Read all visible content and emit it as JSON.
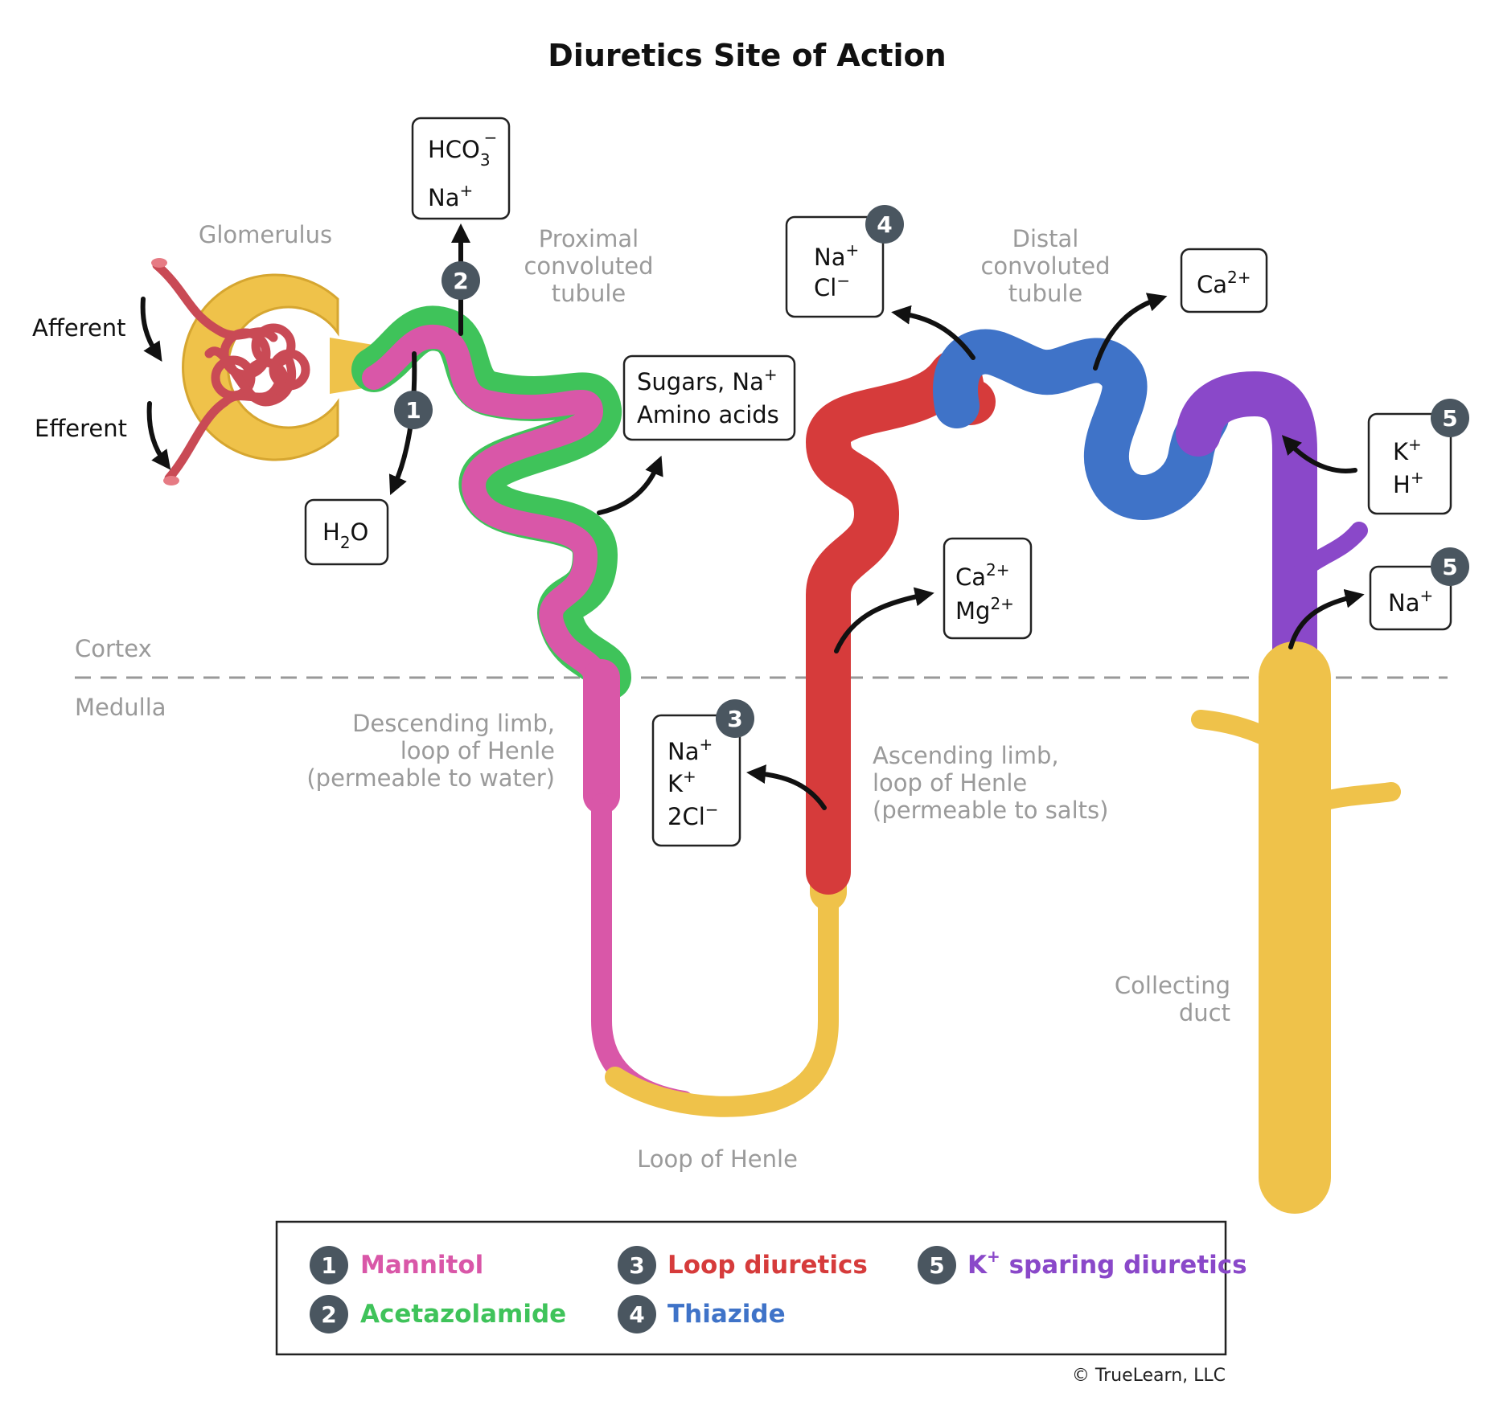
{
  "title": "Diuretics Site of Action",
  "labels": {
    "glomerulus": "Glomerulus",
    "afferent": "Afferent",
    "efferent": "Efferent",
    "pct": [
      "Proximal",
      "convoluted",
      "tubule"
    ],
    "dct": [
      "Distal",
      "convoluted",
      "tubule"
    ],
    "cortex": "Cortex",
    "medulla": "Medulla",
    "descending": [
      "Descending limb,",
      "loop of Henle",
      "(permeable to water)"
    ],
    "ascending": [
      "Ascending limb,",
      "loop of Henle",
      "(permeable to salts)"
    ],
    "loop": "Loop of Henle",
    "collecting": [
      "Collecting",
      "duct"
    ]
  },
  "ion_boxes": {
    "hco3": {
      "line1": "HCO",
      "sub1": "3",
      "sup1": "−",
      "line2": "Na",
      "sup2": "+"
    },
    "h2o": {
      "pre": "H",
      "sub": "2",
      "post": "O"
    },
    "sugars": {
      "line1": "Sugars, Na",
      "sup1": "+",
      "line2": "Amino acids"
    },
    "loop_ions": {
      "l1": "Na",
      "s1": "+",
      "l2": "K",
      "s2": "+",
      "l3": "2Cl",
      "s3": "−"
    },
    "thiazide_ions": {
      "l1": "Na",
      "s1": "+",
      "l2": "Cl",
      "s2": "−"
    },
    "dct_ca": {
      "l1": "Ca",
      "s1": "2+"
    },
    "ca_mg": {
      "l1": "Ca",
      "s1": "2+",
      "l2": "Mg",
      "s2": "2+"
    },
    "k_h": {
      "l1": "K",
      "s1": "+",
      "l2": "H",
      "s2": "+"
    },
    "na_cd": {
      "l1": "Na",
      "s1": "+"
    }
  },
  "badges": [
    "1",
    "2",
    "3",
    "4",
    "5",
    "5"
  ],
  "legend": [
    {
      "num": "1",
      "label": "Mannitol",
      "color": "#d957a8"
    },
    {
      "num": "2",
      "label": "Acetazolamide",
      "color": "#3fc35a"
    },
    {
      "num": "3",
      "label": "Loop diuretics",
      "color": "#d63b3b"
    },
    {
      "num": "4",
      "label": "Thiazide",
      "color": "#3f73c8"
    },
    {
      "num": "5",
      "label_sup_pre": "K",
      "label_sup": "+",
      "label": " sparing diuretics",
      "color": "#8a48c9"
    }
  ],
  "copyright": "© TrueLearn, LLC",
  "colors": {
    "mannitol": "#d957a8",
    "acetazolamide": "#3fc35a",
    "loop": "#d63b3b",
    "thiazide": "#3f73c8",
    "ksparing": "#8a48c9",
    "yellow": "#efc24a",
    "badge": "#4a5660"
  }
}
